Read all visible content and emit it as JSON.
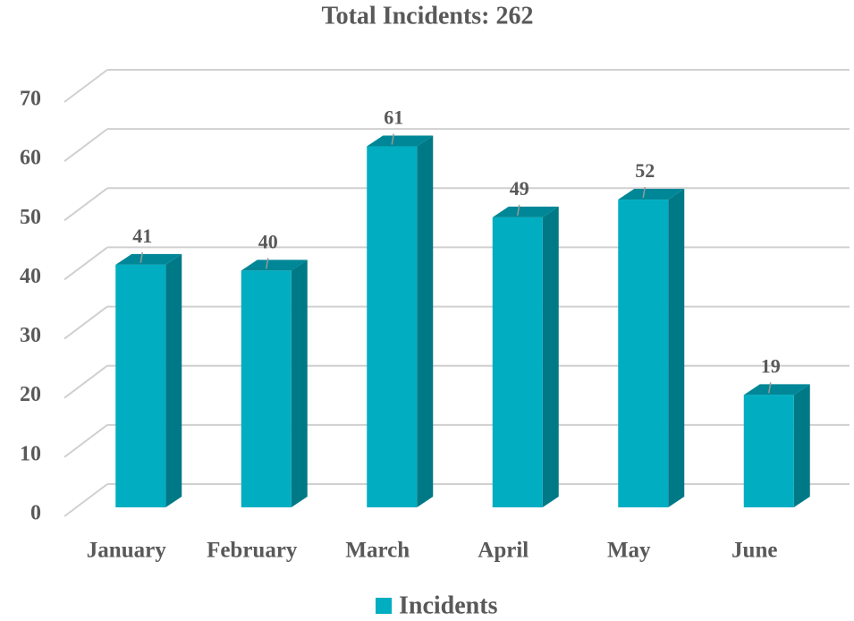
{
  "chart_data": {
    "type": "bar",
    "title": "Total Incidents: 262",
    "categories": [
      "January",
      "February",
      "March",
      "April",
      "May",
      "June"
    ],
    "series": [
      {
        "name": "Incidents",
        "color": "#00adc1",
        "values": [
          41,
          40,
          61,
          49,
          52,
          19
        ]
      }
    ],
    "ylim": [
      0,
      70
    ],
    "yticks": [
      0,
      10,
      20,
      30,
      40,
      50,
      60,
      70
    ],
    "grid": true,
    "legend": "bottom"
  }
}
